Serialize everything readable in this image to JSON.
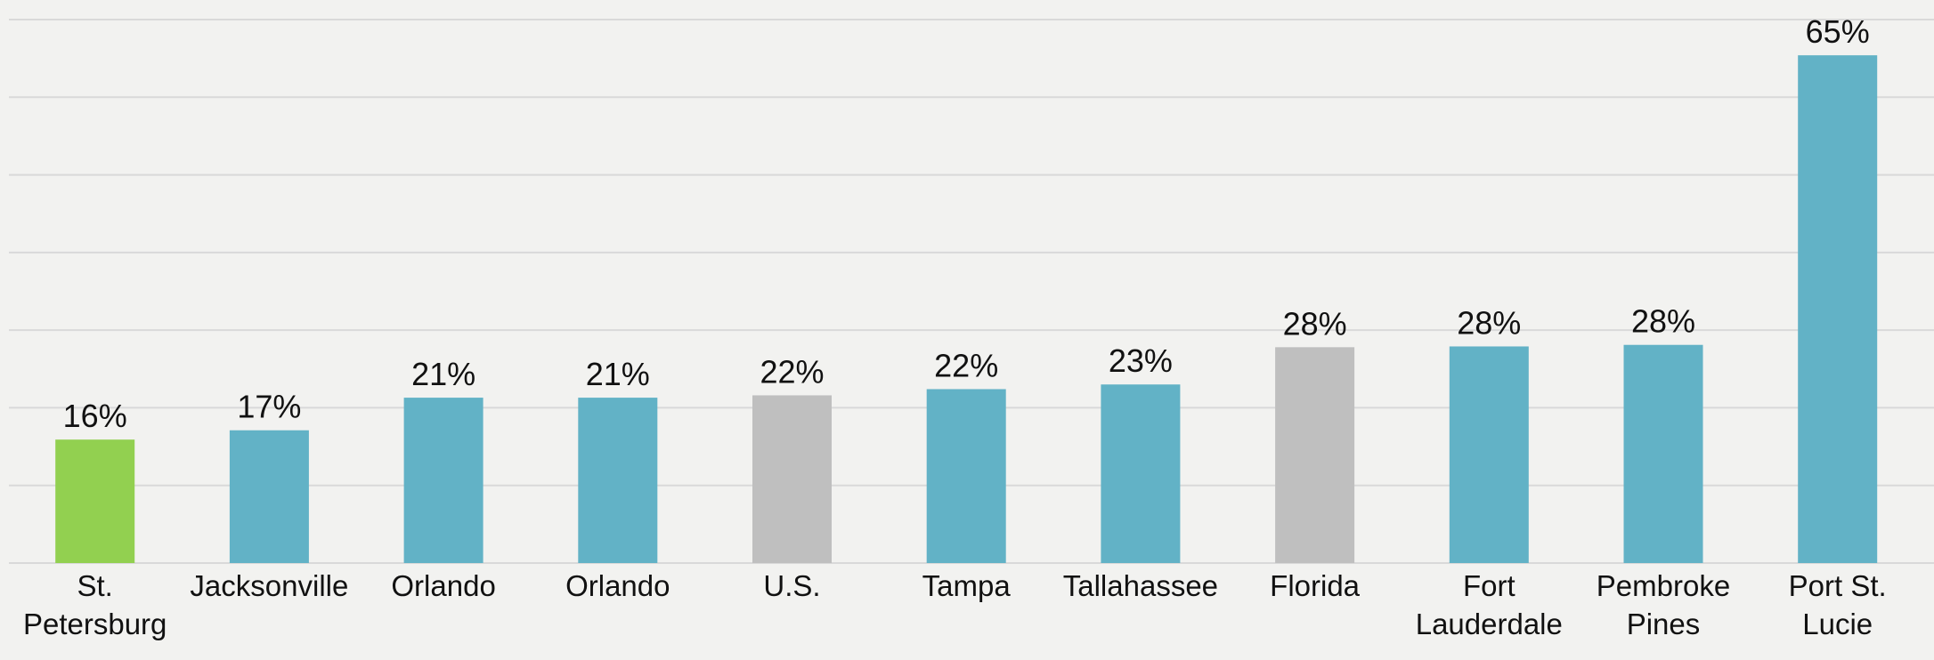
{
  "chart_data": {
    "type": "bar",
    "categories": [
      "St. Petersburg",
      "Jacksonville",
      "Orlando",
      "Orlando",
      "U.S.",
      "Tampa",
      "Tallahassee",
      "Florida",
      "Fort Lauderdale",
      "Pembroke Pines",
      "Port St. Lucie"
    ],
    "values": [
      15.9,
      17.1,
      21.3,
      21.3,
      21.6,
      22.4,
      23,
      27.8,
      27.9,
      28.1,
      65.4
    ],
    "value_labels": [
      "16%",
      "17%",
      "21%",
      "21%",
      "22%",
      "22%",
      "23%",
      "28%",
      "28%",
      "28%",
      "65%"
    ],
    "colors": [
      "#92d050",
      "#62b2c6",
      "#62b2c6",
      "#62b2c6",
      "#bfbfbf",
      "#62b2c6",
      "#62b2c6",
      "#bfbfbf",
      "#62b2c6",
      "#62b2c6",
      "#62b2c6"
    ],
    "ylim": [
      0,
      70
    ],
    "yticks": [
      0,
      10,
      20,
      30,
      40,
      50,
      60,
      70
    ],
    "grid": true
  }
}
